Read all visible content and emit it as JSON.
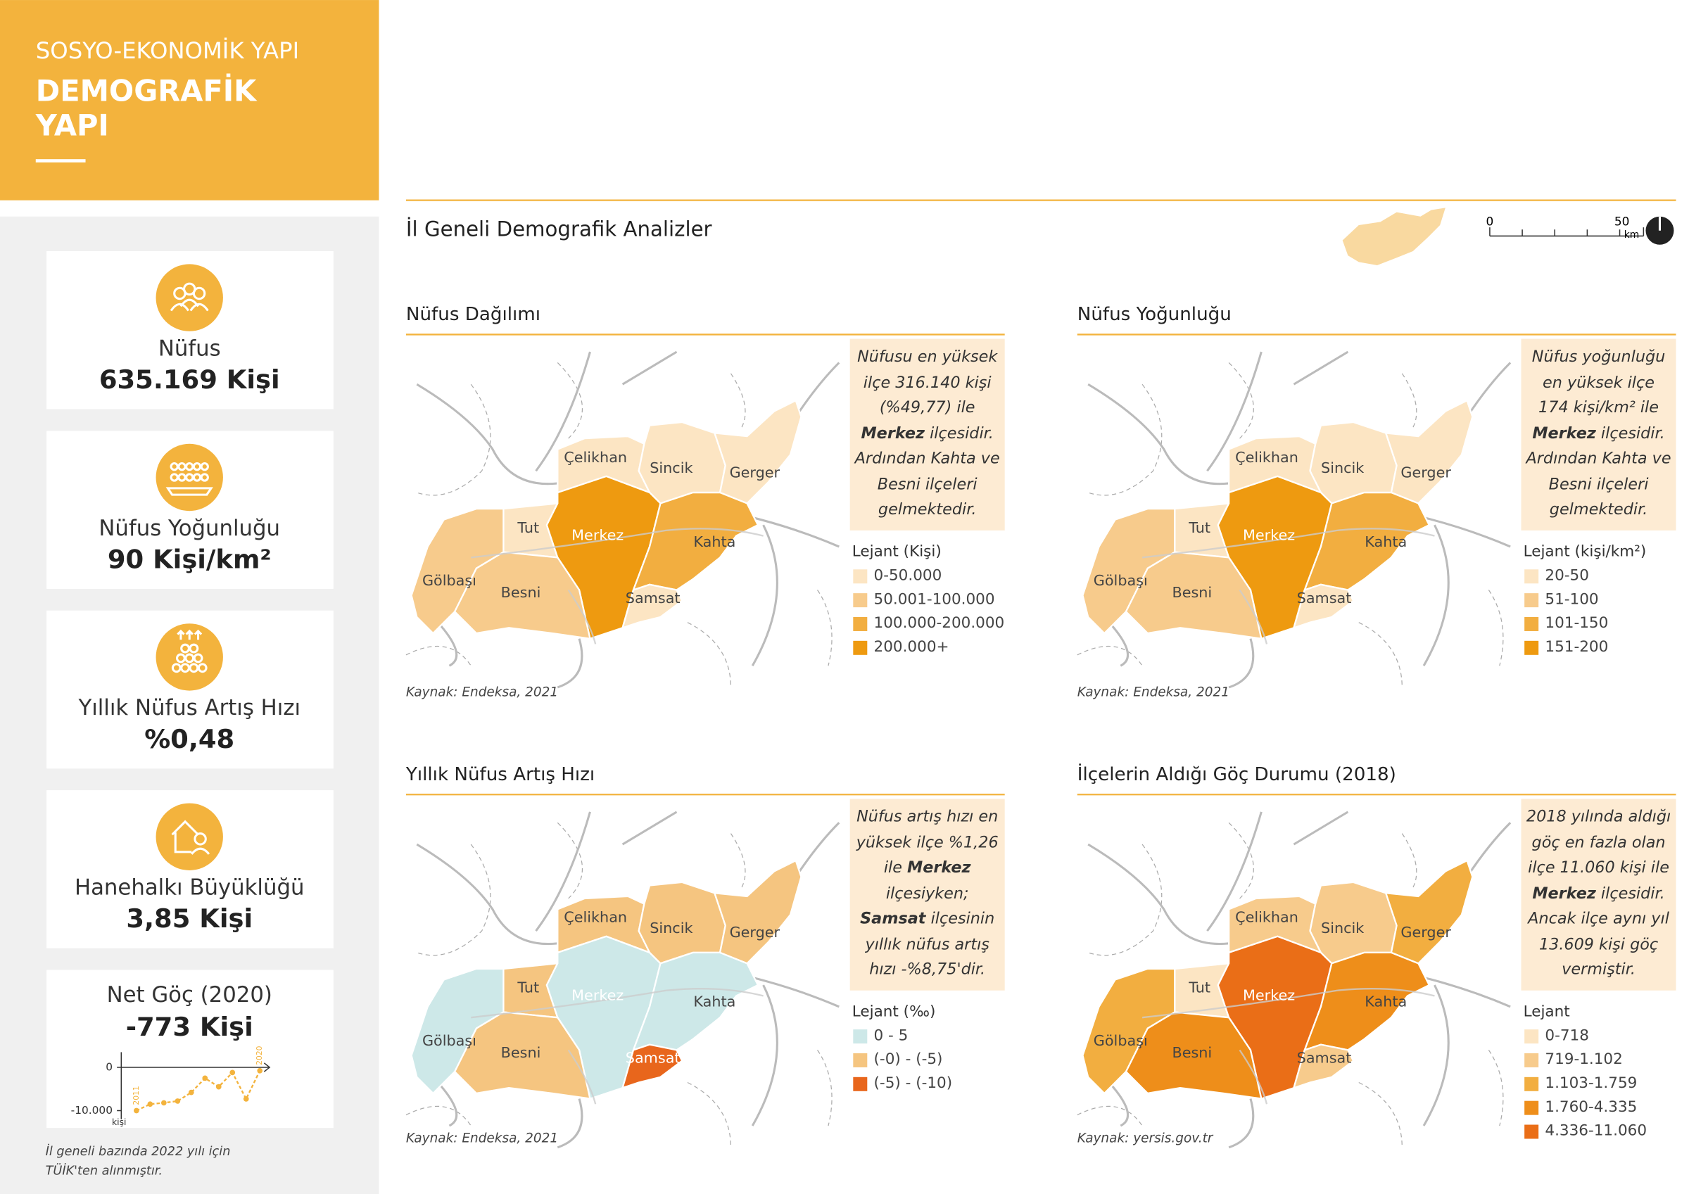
{
  "header": {
    "section": "SOSYO-EKONOMİK YAPI",
    "title": [
      "DEMOGRAFİK",
      "YAPI"
    ]
  },
  "stats": [
    {
      "label": "Nüfus",
      "value": "635.169 Kişi"
    },
    {
      "label": "Nüfus Yoğunluğu",
      "value": "90 Kişi/km²"
    },
    {
      "label": "Yıllık Nüfus Artış Hızı",
      "value": "%0,48"
    },
    {
      "label": "Hanehalkı Büyüklüğü",
      "value": "3,85 Kişi"
    },
    {
      "label": "Net Göç (2020)",
      "value": "-773 Kişi"
    }
  ],
  "chart_data": {
    "type": "line",
    "y_label": "kişi",
    "categories": [
      "2011",
      null,
      null,
      null,
      null,
      null,
      null,
      null,
      null,
      "2020"
    ],
    "values": [
      -10000,
      -8500,
      -8200,
      -7800,
      -5800,
      -2500,
      -4500,
      -1200,
      -7300,
      -773
    ],
    "color": "#F3B33D",
    "ylim": [
      -12000,
      3500
    ],
    "yticks": [
      0,
      {
        "value": -10000,
        "label": "-10.000"
      }
    ]
  },
  "footnote": [
    "İl geneli bazında 2022 yılı için",
    "TÜİK'ten alınmıştır."
  ],
  "main_title": "İl Geneli Demografik Analizler",
  "scale": {
    "start": "0",
    "end": "50",
    "unit": "km"
  },
  "districts": [
    "Çelikhan",
    "Sincik",
    "Gerger",
    "Tut",
    "Merkez",
    "Kahta",
    "Gölbaşı",
    "Besni",
    "Samsat"
  ],
  "panels": [
    {
      "title": "Nüfus Dağılımı",
      "note": [
        {
          "text": "Nüfusu en yüksek ilçe 316.140 kişi (%49,77) ile "
        },
        {
          "text": "Merkez",
          "bold": true
        },
        {
          "text": " ilçesidir. Ardından Kahta ve Besni ilçeleri gelmektedir."
        }
      ],
      "legend_title": "Lejant (Kişi)",
      "legend": [
        {
          "name": "0-50.000",
          "color": "#FCE5C3"
        },
        {
          "name": "50.001-100.000",
          "color": "#F7CB8C"
        },
        {
          "name": "100.000-200.000",
          "color": "#F2AE40"
        },
        {
          "name": "200.000+",
          "color": "#EE9A10"
        }
      ],
      "district_colors": [
        "#FCE5C3",
        "#FCE5C3",
        "#FCE5C3",
        "#FCE5C3",
        "#EE9A10",
        "#F2AE40",
        "#F7CB8C",
        "#F7CB8C",
        "#FCE5C3"
      ],
      "source": "Kaynak: Endeksa, 2021"
    },
    {
      "title": "Nüfus Yoğunluğu",
      "note": [
        {
          "text": "Nüfus yoğunluğu en yüksek ilçe 174 kişi/km² ile "
        },
        {
          "text": "Merkez",
          "bold": true
        },
        {
          "text": " ilçesidir. Ardından Kahta ve Besni ilçeleri gelmektedir."
        }
      ],
      "legend_title": "Lejant (kişi/km²)",
      "legend": [
        {
          "name": "20-50",
          "color": "#FCE5C3"
        },
        {
          "name": "51-100",
          "color": "#F7CB8C"
        },
        {
          "name": "101-150",
          "color": "#F2AE40"
        },
        {
          "name": "151-200",
          "color": "#EE9A10"
        }
      ],
      "district_colors": [
        "#FCE5C3",
        "#FCE5C3",
        "#FCE5C3",
        "#FCE5C3",
        "#EE9A10",
        "#F2AE40",
        "#F7CB8C",
        "#F7CB8C",
        "#FCE5C3"
      ],
      "source": "Kaynak: Endeksa, 2021"
    },
    {
      "title": "Yıllık Nüfus Artış Hızı",
      "note": [
        {
          "text": "Nüfus artış hızı en yüksek ilçe %1,26 ile "
        },
        {
          "text": "Merkez",
          "bold": true
        },
        {
          "text": " ilçesiyken; "
        },
        {
          "text": "Samsat",
          "bold": true
        },
        {
          "text": " ilçesinin yıllık nüfus artış hızı -%8,75'dir."
        }
      ],
      "legend_title": "Lejant (‰)",
      "legend": [
        {
          "name": "0 - 5",
          "color": "#CDE8E8"
        },
        {
          "name": "(-0) - (-5)",
          "color": "#F5C580"
        },
        {
          "name": "(-5) - (-10)",
          "color": "#E8661C"
        }
      ],
      "district_colors": [
        "#F5C580",
        "#F5C580",
        "#F5C580",
        "#F5C580",
        "#CDE8E8",
        "#CDE8E8",
        "#CDE8E8",
        "#F5C580",
        "#E8661C"
      ],
      "source": "Kaynak: Endeksa, 2021"
    },
    {
      "title": "İlçelerin Aldığı Göç Durumu (2018)",
      "note": [
        {
          "text": "2018 yılında aldığı göç en fazla olan ilçe 11.060 kişi ile "
        },
        {
          "text": "Merkez",
          "bold": true
        },
        {
          "text": " ilçesidir. Ancak ilçe aynı yıl 13.609 kişi göç vermiştir."
        }
      ],
      "legend_title": "Lejant",
      "legend": [
        {
          "name": "0-718",
          "color": "#FCE5C3"
        },
        {
          "name": "719-1.102",
          "color": "#F7CB8C"
        },
        {
          "name": "1.103-1.759",
          "color": "#F2AE40"
        },
        {
          "name": "1.760-4.335",
          "color": "#EE8E1A"
        },
        {
          "name": "4.336-11.060",
          "color": "#EA6E17"
        }
      ],
      "district_colors": [
        "#F7CB8C",
        "#F7CB8C",
        "#F2AE40",
        "#FCE5C3",
        "#EA6E17",
        "#EE8E1A",
        "#F2AE40",
        "#EE8E1A",
        "#F7CB8C"
      ],
      "source": "Kaynak: yersis.gov.tr"
    }
  ]
}
